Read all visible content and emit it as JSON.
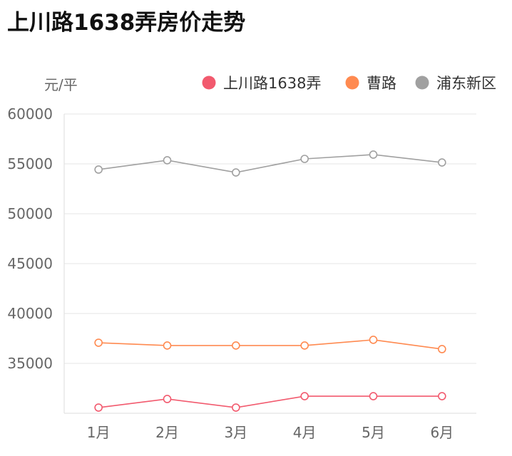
{
  "chart_data": {
    "type": "line",
    "title": "上川路1638弄房价走势",
    "ylabel": "元/平",
    "xlabel": "",
    "categories": [
      "1月",
      "2月",
      "3月",
      "4月",
      "5月",
      "6月"
    ],
    "ylim": [
      30000,
      60000
    ],
    "yticks": [
      "60000",
      "55000",
      "50000",
      "45000",
      "40000",
      "35000"
    ],
    "ytick_values": [
      60000,
      55000,
      50000,
      45000,
      40000,
      35000
    ],
    "grid": true,
    "legend_placement": "top-right",
    "series": [
      {
        "name": "上川路1638弄",
        "color": "#f25a6e",
        "values": [
          30570,
          31430,
          30570,
          31710,
          31710,
          31710
        ]
      },
      {
        "name": "曹路",
        "color": "#ff8a50",
        "values": [
          37070,
          36790,
          36790,
          36790,
          37360,
          36430
        ]
      },
      {
        "name": "浦东新区",
        "color": "#a0a0a0",
        "values": [
          54430,
          55360,
          54140,
          55500,
          55930,
          55140
        ]
      }
    ]
  }
}
